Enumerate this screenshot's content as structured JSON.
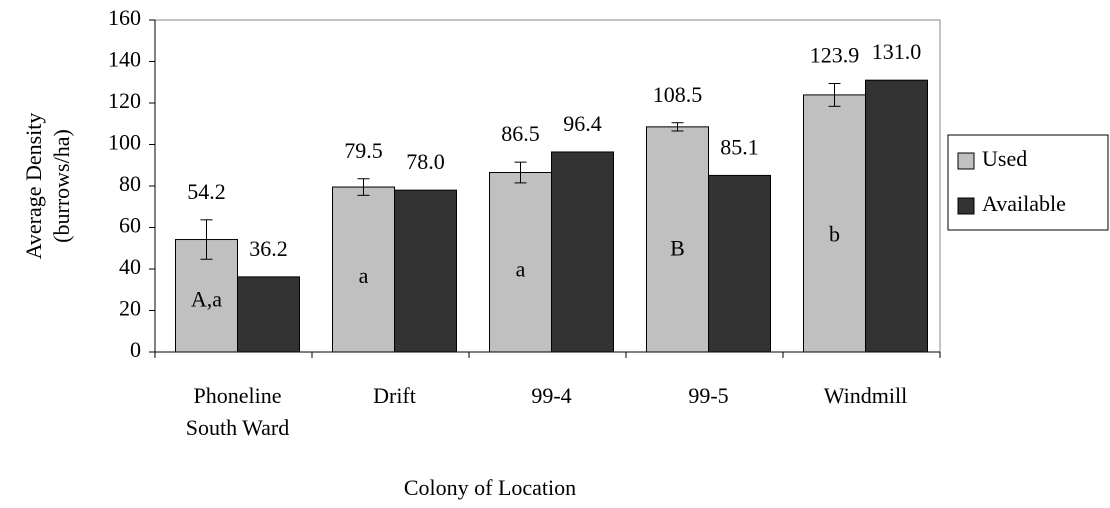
{
  "chart_data": {
    "type": "bar",
    "categories": [
      "Phoneline South Ward",
      "Drift",
      "99-4",
      "99-5",
      "Windmill"
    ],
    "series": [
      {
        "name": "Used",
        "color": "#c0c0c0",
        "values": [
          54.2,
          79.5,
          86.5,
          108.5,
          123.9
        ],
        "value_labels": [
          "54.2",
          "79.5",
          "86.5",
          "108.5",
          "123.9"
        ],
        "errors": [
          9.5,
          4,
          5,
          2,
          5.5
        ],
        "group_labels": [
          "A,a",
          "a",
          "a",
          "B",
          "b"
        ]
      },
      {
        "name": "Available",
        "color": "#333333",
        "values": [
          36.2,
          78,
          96.4,
          85.1,
          131
        ],
        "value_labels": [
          "36.2",
          "78.0",
          "96.4",
          "85.1",
          "131.0"
        ]
      }
    ],
    "ylabel": [
      "Average Density",
      "(burrows/ha)"
    ],
    "xlabel": "Colony of Location",
    "ylim": [
      0,
      160
    ],
    "yticks": [
      0,
      20,
      40,
      60,
      80,
      100,
      120,
      140,
      160
    ],
    "legend": "right"
  }
}
